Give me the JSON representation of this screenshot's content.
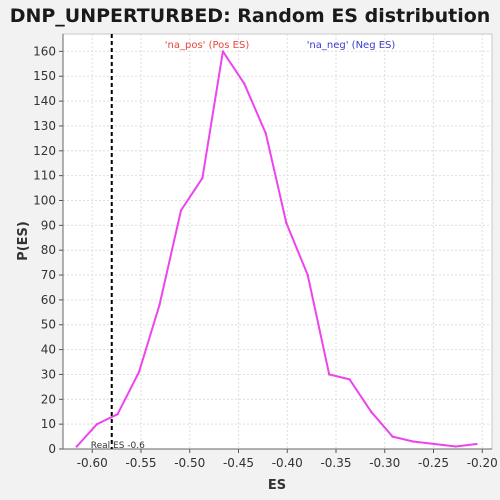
{
  "chart_data": {
    "type": "line",
    "title": "DNP_UNPERTURBED: Random ES distribution",
    "xlabel": "ES",
    "ylabel": "P(ES)",
    "xlim": [
      -0.63,
      -0.19
    ],
    "ylim": [
      0,
      167
    ],
    "x_ticks": [
      -0.6,
      -0.55,
      -0.5,
      -0.45,
      -0.4,
      -0.35,
      -0.3,
      -0.25,
      -0.2
    ],
    "x_tick_labels": [
      "-0.60",
      "-0.55",
      "-0.50",
      "-0.45",
      "-0.40",
      "-0.35",
      "-0.30",
      "-0.25",
      "-0.20"
    ],
    "y_ticks": [
      0,
      10,
      20,
      30,
      40,
      50,
      60,
      70,
      80,
      90,
      100,
      110,
      120,
      130,
      140,
      150,
      160
    ],
    "y_tick_labels": [
      "0",
      "10",
      "20",
      "30",
      "40",
      "50",
      "60",
      "70",
      "80",
      "90",
      "100",
      "110",
      "120",
      "130",
      "140",
      "150",
      "160"
    ],
    "grid": true,
    "legend": [
      {
        "label": "'na_pos' (Pos ES)",
        "color": "#e8453c"
      },
      {
        "label": "'na_neg' (Neg ES)",
        "color": "#3b3bcc"
      }
    ],
    "series": [
      {
        "name": "distribution",
        "color": "#ee44ee",
        "x": [
          -0.616,
          -0.595,
          -0.574,
          -0.552,
          -0.531,
          -0.509,
          -0.487,
          -0.466,
          -0.444,
          -0.422,
          -0.401,
          -0.379,
          -0.357,
          -0.336,
          -0.314,
          -0.292,
          -0.271,
          -0.249,
          -0.227,
          -0.206
        ],
        "y": [
          1,
          10,
          14,
          31,
          58,
          96,
          109,
          160,
          147,
          127,
          91,
          70,
          30,
          28,
          15,
          5,
          3,
          2,
          1,
          2
        ]
      }
    ],
    "annotations": [
      {
        "type": "vline",
        "x": -0.58,
        "label": "Real ES -0.6",
        "color": "#000000"
      }
    ]
  }
}
